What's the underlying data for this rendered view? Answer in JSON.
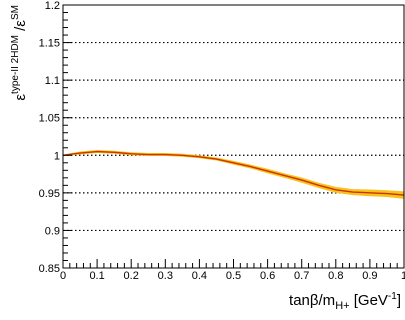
{
  "chart_data": {
    "type": "line",
    "title": "",
    "xlabel": "tanβ/m_H+ [GeV⁻¹]",
    "ylabel": "ε^type-II 2HDM / ε^SM",
    "xlim": [
      0,
      1
    ],
    "ylim": [
      0.85,
      1.2
    ],
    "xticks": [
      "0",
      "0.1",
      "0.2",
      "0.3",
      "0.4",
      "0.5",
      "0.6",
      "0.7",
      "0.8",
      "0.9",
      "1"
    ],
    "yticks": [
      "0.85",
      "0.9",
      "0.95",
      "1",
      "1.05",
      "1.1",
      "1.15",
      "1.2"
    ],
    "grid": "horizontal dotted",
    "series": [
      {
        "type": "line",
        "color": "#cc3300",
        "x": [
          0,
          0.05,
          0.1,
          0.15,
          0.2,
          0.25,
          0.3,
          0.35,
          0.4,
          0.45,
          0.5,
          0.55,
          0.6,
          0.65,
          0.7,
          0.75,
          0.8,
          0.85,
          0.9,
          0.95,
          1.0
        ],
        "y": [
          1.0,
          1.003,
          1.005,
          1.004,
          1.002,
          1.001,
          1.001,
          1.0,
          0.998,
          0.995,
          0.99,
          0.985,
          0.979,
          0.973,
          0.967,
          0.96,
          0.954,
          0.951,
          0.95,
          0.949,
          0.947
        ],
        "band_halfwidth": [
          0.001,
          0.002,
          0.002,
          0.002,
          0.002,
          0.002,
          0.002,
          0.002,
          0.002,
          0.002,
          0.0025,
          0.0025,
          0.003,
          0.003,
          0.0035,
          0.0035,
          0.004,
          0.004,
          0.0045,
          0.0045,
          0.005
        ],
        "band_color": "#f7c21b"
      }
    ]
  }
}
